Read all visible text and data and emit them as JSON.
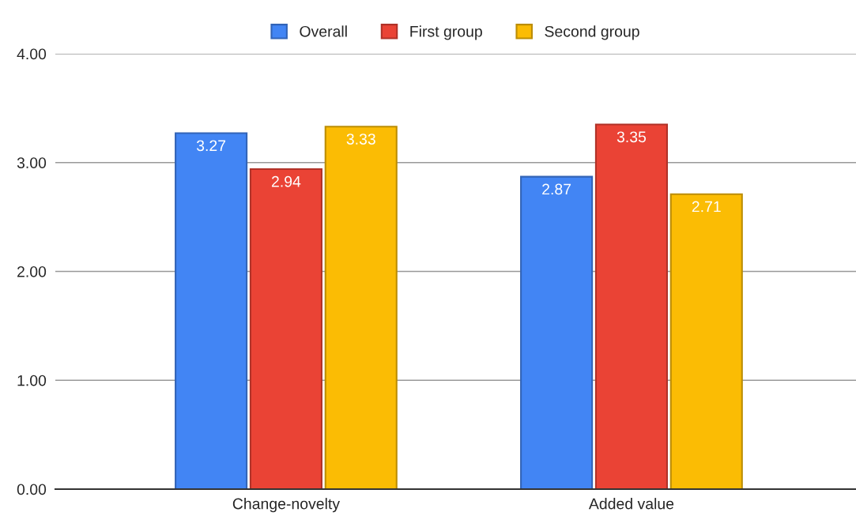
{
  "chart_data": {
    "type": "bar",
    "categories": [
      "Change-novelty",
      "Added value"
    ],
    "series": [
      {
        "name": "Overall",
        "color": "#4285f4",
        "values": [
          3.27,
          2.87
        ]
      },
      {
        "name": "First group",
        "color": "#ea4335",
        "values": [
          2.94,
          3.35
        ]
      },
      {
        "name": "Second group",
        "color": "#fbbc04",
        "values": [
          3.33,
          2.71
        ]
      }
    ],
    "ylim": [
      0,
      4
    ],
    "yticks": [
      {
        "value": 0,
        "label": "0.00"
      },
      {
        "value": 1,
        "label": "1.00"
      },
      {
        "value": 2,
        "label": "2.00"
      },
      {
        "value": 3,
        "label": "3.00"
      },
      {
        "value": 4,
        "label": "4.00"
      }
    ],
    "grid": "y",
    "legend": "top",
    "data_labels": true
  }
}
